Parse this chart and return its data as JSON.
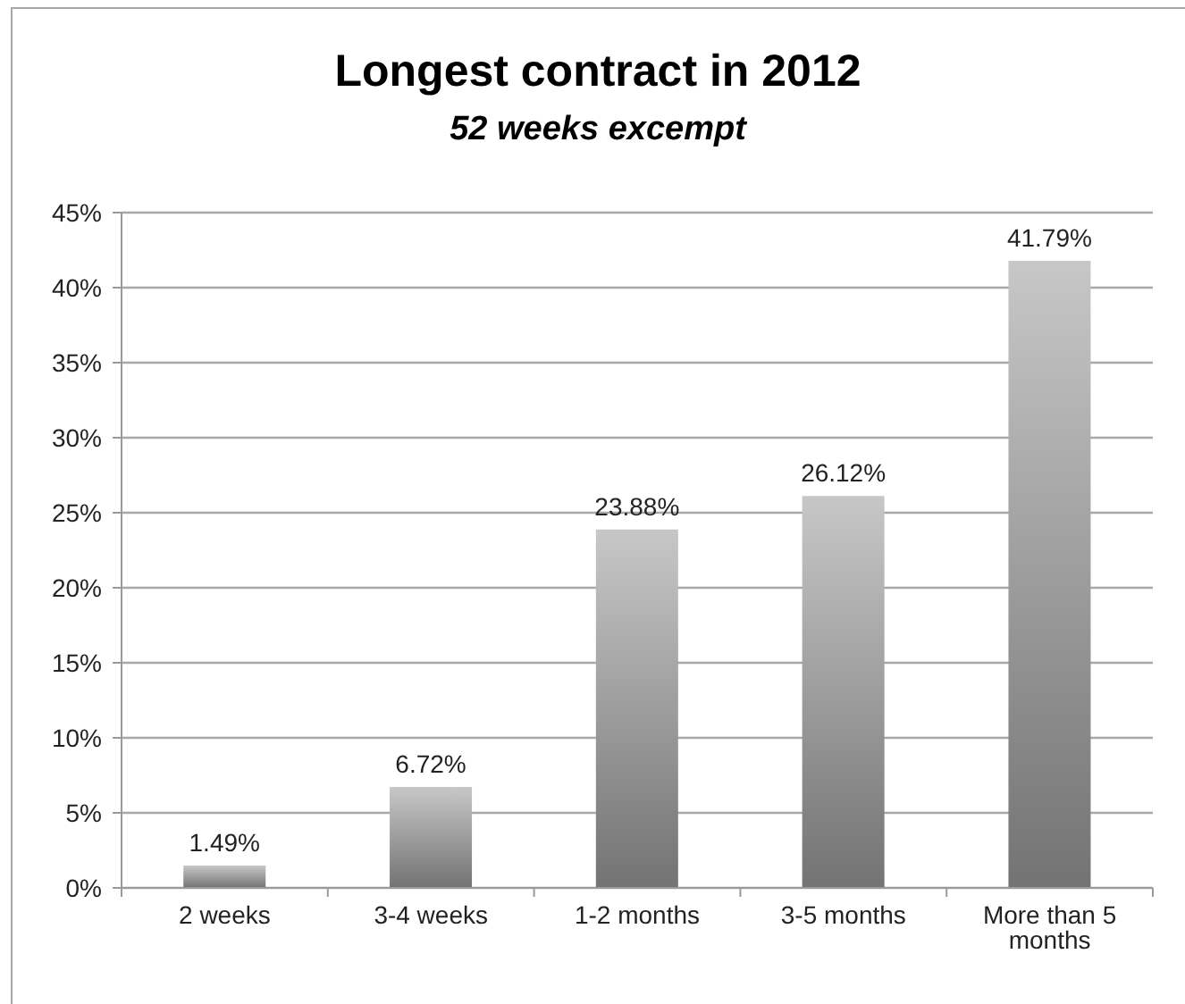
{
  "chart_data": {
    "type": "bar",
    "title": "Longest contract in 2012",
    "subtitle": "52 weeks excempt",
    "categories": [
      "2 weeks",
      "3-4 weeks",
      "1-2 months",
      "3-5 months",
      "More than 5 months"
    ],
    "values": [
      1.49,
      6.72,
      23.88,
      26.12,
      41.79
    ],
    "value_labels": [
      "1.49%",
      "6.72%",
      "23.88%",
      "26.12%",
      "41.79%"
    ],
    "color": "#999999",
    "ylim": [
      0,
      45
    ],
    "yticks": [
      {
        "value": 0,
        "label": "0%"
      },
      {
        "value": 5,
        "label": "5%"
      },
      {
        "value": 10,
        "label": "10%"
      },
      {
        "value": 15,
        "label": "15%"
      },
      {
        "value": 20,
        "label": "20%"
      },
      {
        "value": 25,
        "label": "25%"
      },
      {
        "value": 30,
        "label": "30%"
      },
      {
        "value": 35,
        "label": "35%"
      },
      {
        "value": 40,
        "label": "40%"
      },
      {
        "value": 45,
        "label": "45%"
      }
    ],
    "grid": "y"
  }
}
